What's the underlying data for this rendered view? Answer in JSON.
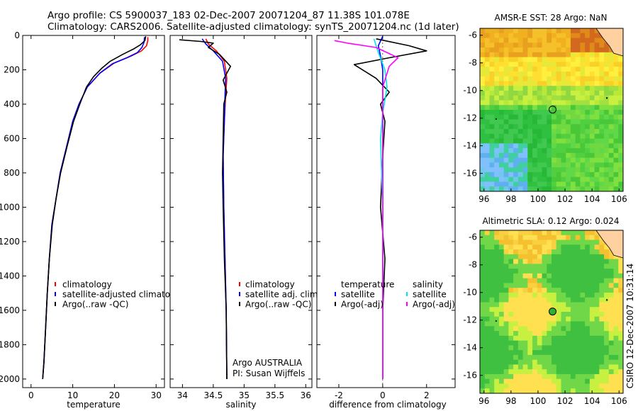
{
  "header": {
    "line1": "Argo profile: CS 5900037_183 02-Dec-2007 20071204_87 11.38S 101.078E",
    "line2": "Climatology: CARS2006. Satellite-adjusted climatology: synTS_20071204.nc (1d later)"
  },
  "side_label": "CSIRO 12-Dec-2007 10:31:14",
  "colors": {
    "red": "#ff0000",
    "blue": "#0000ff",
    "black": "#000000",
    "cyan": "#00e5e5",
    "magenta": "#ff00ff"
  },
  "chart_data": [
    {
      "type": "line",
      "id": "temperature",
      "xlabel": "temperature",
      "xlim": [
        -2,
        32
      ],
      "ylim": [
        2050,
        0
      ],
      "xticks": [
        0,
        10,
        20,
        30
      ],
      "yticks": [
        0,
        200,
        400,
        600,
        800,
        1000,
        1200,
        1400,
        1600,
        1800,
        2000
      ],
      "legend": {
        "position": "center-right",
        "entries": [
          {
            "label": "climatology",
            "color": "#ff0000"
          },
          {
            "label": "satellite-adjusted climatology",
            "color": "#0000ff"
          },
          {
            "label": "Argo(..raw -QC)",
            "color": "#000000"
          }
        ]
      },
      "series": [
        {
          "name": "climatology",
          "color": "#ff0000",
          "points": [
            [
              28,
              10
            ],
            [
              28,
              30
            ],
            [
              27.7,
              60
            ],
            [
              26.5,
              90
            ],
            [
              24,
              120
            ],
            [
              20,
              160
            ],
            [
              16.5,
              220
            ],
            [
              13.5,
              300
            ],
            [
              11.5,
              400
            ],
            [
              10,
              500
            ],
            [
              8.5,
              650
            ],
            [
              7,
              800
            ],
            [
              6,
              950
            ],
            [
              5,
              1100
            ],
            [
              4.4,
              1300
            ],
            [
              3.9,
              1500
            ],
            [
              3.5,
              1700
            ],
            [
              3.1,
              1900
            ],
            [
              2.8,
              2000
            ]
          ]
        },
        {
          "name": "satellite-adjusted climatology",
          "color": "#0000ff",
          "points": [
            [
              27.2,
              10
            ],
            [
              27.1,
              40
            ],
            [
              26.6,
              70
            ],
            [
              25.5,
              100
            ],
            [
              23,
              130
            ],
            [
              19.5,
              165
            ],
            [
              16.5,
              220
            ],
            [
              13.5,
              300
            ],
            [
              11.5,
              400
            ],
            [
              10,
              500
            ],
            [
              8.5,
              650
            ],
            [
              7,
              800
            ],
            [
              6,
              950
            ],
            [
              5,
              1100
            ],
            [
              4.4,
              1300
            ],
            [
              3.9,
              1500
            ],
            [
              3.5,
              1700
            ],
            [
              3.1,
              1900
            ],
            [
              2.8,
              2000
            ]
          ]
        },
        {
          "name": "Argo(..raw -QC)",
          "color": "#000000",
          "points": [
            [
              27.5,
              5
            ],
            [
              27.3,
              30
            ],
            [
              26.2,
              55
            ],
            [
              24.5,
              80
            ],
            [
              22,
              110
            ],
            [
              19,
              150
            ],
            [
              17,
              190
            ],
            [
              15,
              240
            ],
            [
              13.3,
              300
            ],
            [
              11.7,
              400
            ],
            [
              10.2,
              500
            ],
            [
              8.6,
              650
            ],
            [
              7.1,
              800
            ],
            [
              6,
              950
            ],
            [
              5.1,
              1100
            ],
            [
              4.4,
              1300
            ],
            [
              3.9,
              1500
            ],
            [
              3.5,
              1700
            ],
            [
              3.1,
              1900
            ],
            [
              2.8,
              2000
            ]
          ]
        }
      ]
    },
    {
      "type": "line",
      "id": "salinity",
      "xlabel": "salinity",
      "xlim": [
        33.8,
        36.1
      ],
      "ylim": [
        2050,
        0
      ],
      "xticks": [
        34,
        34.5,
        35,
        35.5,
        36
      ],
      "xtick_labels": [
        "34",
        "34.5",
        "35",
        "35.5",
        "36"
      ],
      "legend": {
        "position": "center-right",
        "entries": [
          {
            "label": "climatology",
            "color": "#ff0000"
          },
          {
            "label": "satellite adj. clim.",
            "color": "#0000ff"
          },
          {
            "label": "Argo(..raw -QC)",
            "color": "#000000"
          }
        ]
      },
      "annotation": {
        "line1": "Argo AUSTRALIA",
        "line2": "PI: Susan Wijffels"
      },
      "series": [
        {
          "name": "climatology",
          "color": "#ff0000",
          "points": [
            [
              34.38,
              20
            ],
            [
              34.42,
              50
            ],
            [
              34.55,
              90
            ],
            [
              34.68,
              150
            ],
            [
              34.72,
              250
            ],
            [
              34.7,
              350
            ],
            [
              34.68,
              500
            ],
            [
              34.66,
              700
            ],
            [
              34.67,
              1000
            ],
            [
              34.69,
              1300
            ],
            [
              34.71,
              1600
            ],
            [
              34.72,
              2000
            ]
          ]
        },
        {
          "name": "satellite adj. clim.",
          "color": "#0000ff",
          "points": [
            [
              34.32,
              20
            ],
            [
              34.38,
              50
            ],
            [
              34.5,
              90
            ],
            [
              34.65,
              150
            ],
            [
              34.7,
              250
            ],
            [
              34.69,
              350
            ],
            [
              34.68,
              500
            ],
            [
              34.66,
              700
            ],
            [
              34.67,
              1000
            ],
            [
              34.69,
              1300
            ],
            [
              34.71,
              1600
            ],
            [
              34.72,
              2000
            ]
          ]
        },
        {
          "name": "Argo(..raw -QC)",
          "color": "#000000",
          "points": [
            [
              33.95,
              25
            ],
            [
              34.3,
              35
            ],
            [
              34.5,
              45
            ],
            [
              34.42,
              70
            ],
            [
              34.6,
              110
            ],
            [
              34.78,
              180
            ],
            [
              34.66,
              260
            ],
            [
              34.72,
              330
            ],
            [
              34.67,
              400
            ],
            [
              34.66,
              600
            ],
            [
              34.65,
              800
            ],
            [
              34.66,
              1000
            ],
            [
              34.68,
              1300
            ],
            [
              34.71,
              1600
            ],
            [
              34.72,
              2000
            ]
          ]
        }
      ]
    },
    {
      "type": "line",
      "id": "difference",
      "xlabel": "difference from climatology",
      "xlim": [
        -3,
        3.3
      ],
      "ylim": [
        2050,
        0
      ],
      "xticks": [
        -2,
        0,
        2
      ],
      "legend": {
        "position": "center",
        "entries": [
          {
            "group": "temperature",
            "label": "satellite",
            "color": "#0000ff"
          },
          {
            "group": "temperature",
            "label": "Argo(-adj)",
            "color": "#000000"
          },
          {
            "group": "salinity",
            "label": "satellite",
            "color": "#00e5e5"
          },
          {
            "group": "salinity",
            "label": "Argo(-adj)",
            "color": "#ff00ff"
          }
        ]
      },
      "legend_headers": {
        "temperature": "temperature",
        "salinity": "salinity"
      },
      "series": [
        {
          "name": "temperature satellite",
          "color": "#0000ff",
          "points": [
            [
              0,
              5
            ],
            [
              -0.2,
              60
            ],
            [
              -0.1,
              120
            ],
            [
              0,
              200
            ],
            [
              0,
              400
            ],
            [
              0,
              800
            ],
            [
              0,
              2000
            ]
          ]
        },
        {
          "name": "temperature Argo(-adj)",
          "color": "#000000",
          "points": [
            [
              -0.3,
              20
            ],
            [
              1.2,
              60
            ],
            [
              2,
              90
            ],
            [
              0.3,
              130
            ],
            [
              -1.3,
              170
            ],
            [
              -0.3,
              250
            ],
            [
              0.3,
              330
            ],
            [
              -0.1,
              400
            ],
            [
              0.1,
              500
            ],
            [
              0,
              700
            ],
            [
              -0.1,
              1000
            ],
            [
              0.1,
              1300
            ],
            [
              0,
              1600
            ],
            [
              0,
              2000
            ]
          ]
        },
        {
          "name": "salinity satellite",
          "color": "#00e5e5",
          "points": [
            [
              -0.4,
              20
            ],
            [
              -0.2,
              100
            ],
            [
              0.1,
              200
            ],
            [
              0.2,
              300
            ],
            [
              0,
              450
            ],
            [
              -0.1,
              600
            ],
            [
              0,
              1000
            ],
            [
              0,
              1500
            ],
            [
              0,
              2000
            ]
          ]
        },
        {
          "name": "salinity Argo(-adj)",
          "color": "#ff00ff",
          "points": [
            [
              -2.2,
              30
            ],
            [
              -1.6,
              45
            ],
            [
              -0.3,
              70
            ],
            [
              0.7,
              130
            ],
            [
              0.3,
              180
            ],
            [
              0,
              300
            ],
            [
              0,
              600
            ],
            [
              0,
              1000
            ],
            [
              0,
              1500
            ],
            [
              0,
              2000
            ]
          ]
        }
      ]
    },
    {
      "type": "heatmap",
      "id": "sst-map",
      "title": "AMSR-E SST: 28 Argo: NaN",
      "xlim": [
        95.7,
        106.3
      ],
      "ylim": [
        -17.3,
        -5.5
      ],
      "xticks": [
        96,
        98,
        100,
        102,
        104,
        106
      ],
      "yticks": [
        -6,
        -8,
        -10,
        -12,
        -14,
        -16
      ],
      "marker": {
        "lon": 101.078,
        "lat": -11.38,
        "filled": false
      }
    },
    {
      "type": "heatmap",
      "id": "sla-map",
      "title": "Altimetric SLA: 0.12 Argo: 0.024",
      "xlim": [
        95.7,
        106.3
      ],
      "ylim": [
        -17.3,
        -5.5
      ],
      "xticks": [
        96,
        98,
        100,
        102,
        104,
        106
      ],
      "yticks": [
        -6,
        -8,
        -10,
        -12,
        -14,
        -16
      ],
      "marker": {
        "lon": 101.078,
        "lat": -11.38,
        "filled": true
      }
    }
  ]
}
